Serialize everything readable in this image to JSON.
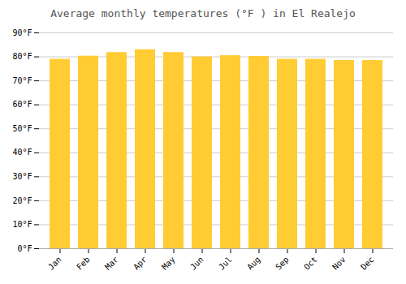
{
  "chart_data": {
    "type": "bar",
    "title": "Average monthly temperatures (°F ) in El Realejo",
    "categories": [
      "Jan",
      "Feb",
      "Mar",
      "Apr",
      "May",
      "Jun",
      "Jul",
      "Aug",
      "Sep",
      "Oct",
      "Nov",
      "Dec"
    ],
    "values": [
      79.0,
      80.3,
      81.8,
      83.0,
      81.8,
      80.0,
      80.5,
      80.2,
      79.0,
      79.0,
      78.5,
      78.5
    ],
    "color": "#FFCC33",
    "ylim": [
      0,
      90
    ],
    "yticks": [
      {
        "value": 0,
        "label": "0°F"
      },
      {
        "value": 10,
        "label": "10°F"
      },
      {
        "value": 20,
        "label": "20°F"
      },
      {
        "value": 30,
        "label": "30°F"
      },
      {
        "value": 40,
        "label": "40°F"
      },
      {
        "value": 50,
        "label": "50°F"
      },
      {
        "value": 60,
        "label": "60°F"
      },
      {
        "value": 70,
        "label": "70°F"
      },
      {
        "value": 80,
        "label": "80°F"
      },
      {
        "value": 90,
        "label": "90°F"
      }
    ],
    "grid": true
  }
}
